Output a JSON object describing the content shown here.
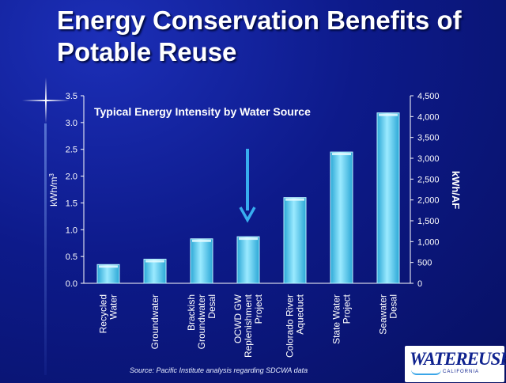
{
  "slide": {
    "title": "Energy Conservation Benefits of Potable Reuse",
    "source_note": "Source: Pacific Institute analysis regarding SDCWA data",
    "logo_text": "WATEREUSE",
    "logo_subtext": "CALIFORNIA"
  },
  "colors": {
    "background": "#0d1a8a",
    "bar_fill": "#5fd2ee",
    "bar_edge": "#bdf3ff",
    "arrow": "#38aef0",
    "text": "#ffffff"
  },
  "chart_data": {
    "type": "bar",
    "title": "Typical Energy Intensity by Water Source",
    "categories": [
      [
        "Recycled",
        "Water"
      ],
      [
        "Groundwater"
      ],
      [
        "Brackish",
        "Groundwater",
        "Desal"
      ],
      [
        "OCWD GW",
        "Replenishment",
        "Project"
      ],
      [
        "Colorado River",
        "Aqueduct"
      ],
      [
        "State Water",
        "Project"
      ],
      [
        "Seawater",
        "Desal"
      ]
    ],
    "values": [
      0.35,
      0.45,
      0.83,
      0.87,
      1.6,
      2.45,
      3.18
    ],
    "ylabel_left": "kWh/m",
    "ylabel_left_superscript": "3",
    "ylabel_right": "kWh/AF",
    "ylim": [
      0,
      3.5
    ],
    "yticks_left": [
      "0.0",
      "0.5",
      "1.0",
      "1.5",
      "2.0",
      "2.5",
      "3.0",
      "3.5"
    ],
    "yticks_right": [
      "0",
      "500",
      "1,000",
      "1,500",
      "2,000",
      "2,500",
      "3,000",
      "3,500",
      "4,000",
      "4,500"
    ],
    "ylim_right": [
      0,
      4500
    ],
    "annotation": {
      "type": "arrow",
      "target_category_index": 3
    },
    "grid": false,
    "legend": "none"
  }
}
